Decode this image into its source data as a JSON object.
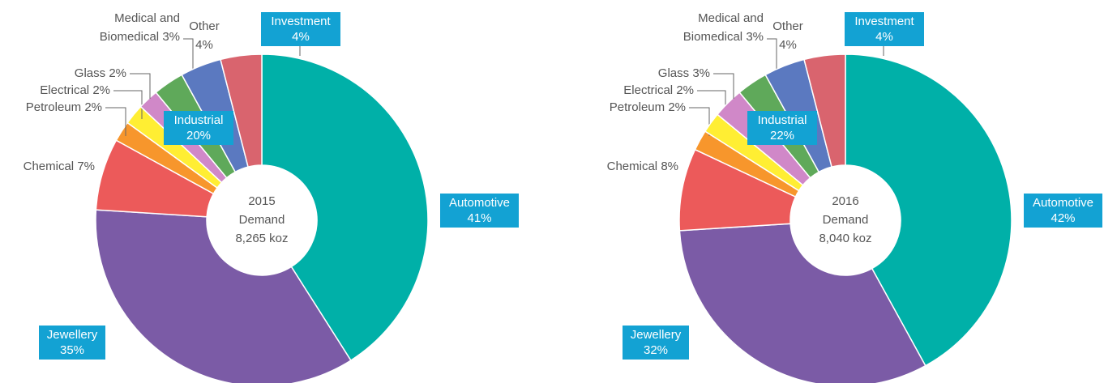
{
  "chart_data": [
    {
      "type": "donut",
      "center_text": [
        "2015",
        "Demand",
        "8,265 koz"
      ],
      "categories": [
        "Automotive",
        "Jewellery",
        "Chemical",
        "Petroleum",
        "Electrical",
        "Glass",
        "Medical and Biomedical",
        "Other",
        "Investment"
      ],
      "values": [
        41,
        35,
        7,
        2,
        2,
        2,
        3,
        4,
        4
      ],
      "value_labels": [
        "41%",
        "35%",
        "7%",
        "2%",
        "2%",
        "2%",
        "3%",
        "4%",
        "4%"
      ],
      "colors": [
        "#00b0a8",
        "#7b5ba6",
        "#ec5a5a",
        "#f7962c",
        "#ffee33",
        "#d088c8",
        "#5fa95a",
        "#5b79c0",
        "#d9646e"
      ],
      "annotations": [
        {
          "text": "Industrial",
          "value": 20,
          "label": "20%"
        }
      ]
    },
    {
      "type": "donut",
      "center_text": [
        "2016",
        "Demand",
        "8,040 koz"
      ],
      "categories": [
        "Automotive",
        "Jewellery",
        "Chemical",
        "Petroleum",
        "Electrical",
        "Glass",
        "Medical and Biomedical",
        "Other",
        "Investment"
      ],
      "values": [
        42,
        32,
        8,
        2,
        2,
        3,
        3,
        4,
        4
      ],
      "value_labels": [
        "42%",
        "32%",
        "8%",
        "2%",
        "2%",
        "3%",
        "3%",
        "4%",
        "4%"
      ],
      "colors": [
        "#00b0a8",
        "#7b5ba6",
        "#ec5a5a",
        "#f7962c",
        "#ffee33",
        "#d088c8",
        "#5fa95a",
        "#5b79c0",
        "#d9646e"
      ],
      "annotations": [
        {
          "text": "Industrial",
          "value": 22,
          "label": "22%"
        }
      ]
    }
  ]
}
